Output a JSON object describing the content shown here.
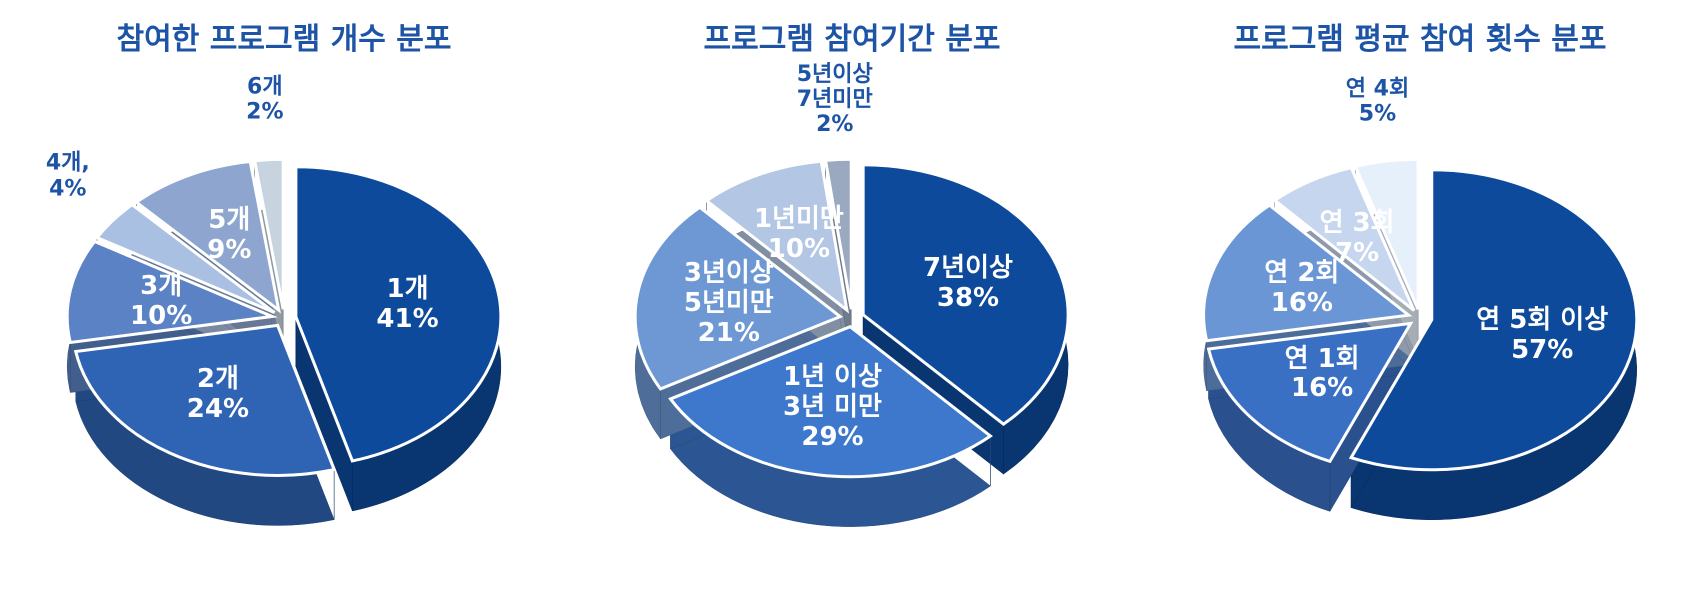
{
  "chart_data": [
    {
      "type": "pie",
      "title": "참여한 프로그램 개수 분포",
      "categories": [
        "1개",
        "2개",
        "3개",
        "4개,",
        "5개",
        "6개"
      ],
      "values": [
        41,
        24,
        10,
        4,
        9,
        2
      ],
      "value_labels": [
        "41%",
        "24%",
        "10%",
        "4%",
        "9%",
        "2%"
      ],
      "colors": [
        "#0d4a9c",
        "#2f64b5",
        "#5a82c4",
        "#a9c0e2",
        "#8ea6cf",
        "#c8d3e0"
      ]
    },
    {
      "type": "pie",
      "title": "프로그램 참여기간 분포",
      "categories": [
        "7년이상",
        "1년 이상\n3년 미만",
        "3년이상\n5년미만",
        "1년미만",
        "5년이상\n7년미만"
      ],
      "values": [
        38,
        29,
        21,
        10,
        2
      ],
      "value_labels": [
        "38%",
        "29%",
        "21%",
        "10%",
        "2%"
      ],
      "colors": [
        "#0d4a9c",
        "#3d78cc",
        "#6e98d4",
        "#b3c6e3",
        "#9aa9c0"
      ]
    },
    {
      "type": "pie",
      "title": "프로그램 평균 참여 횟수 분포",
      "categories": [
        "연 5회 이상",
        "연 1회",
        "연 2회",
        "연 3회",
        "연 4회"
      ],
      "values": [
        57,
        16,
        16,
        7,
        5
      ],
      "value_labels": [
        "57%",
        "16%",
        "16%",
        "7%",
        "5%"
      ],
      "colors": [
        "#0d4a9c",
        "#3a70c4",
        "#6a96d6",
        "#c5d6ee",
        "#e6f0fa"
      ]
    }
  ]
}
